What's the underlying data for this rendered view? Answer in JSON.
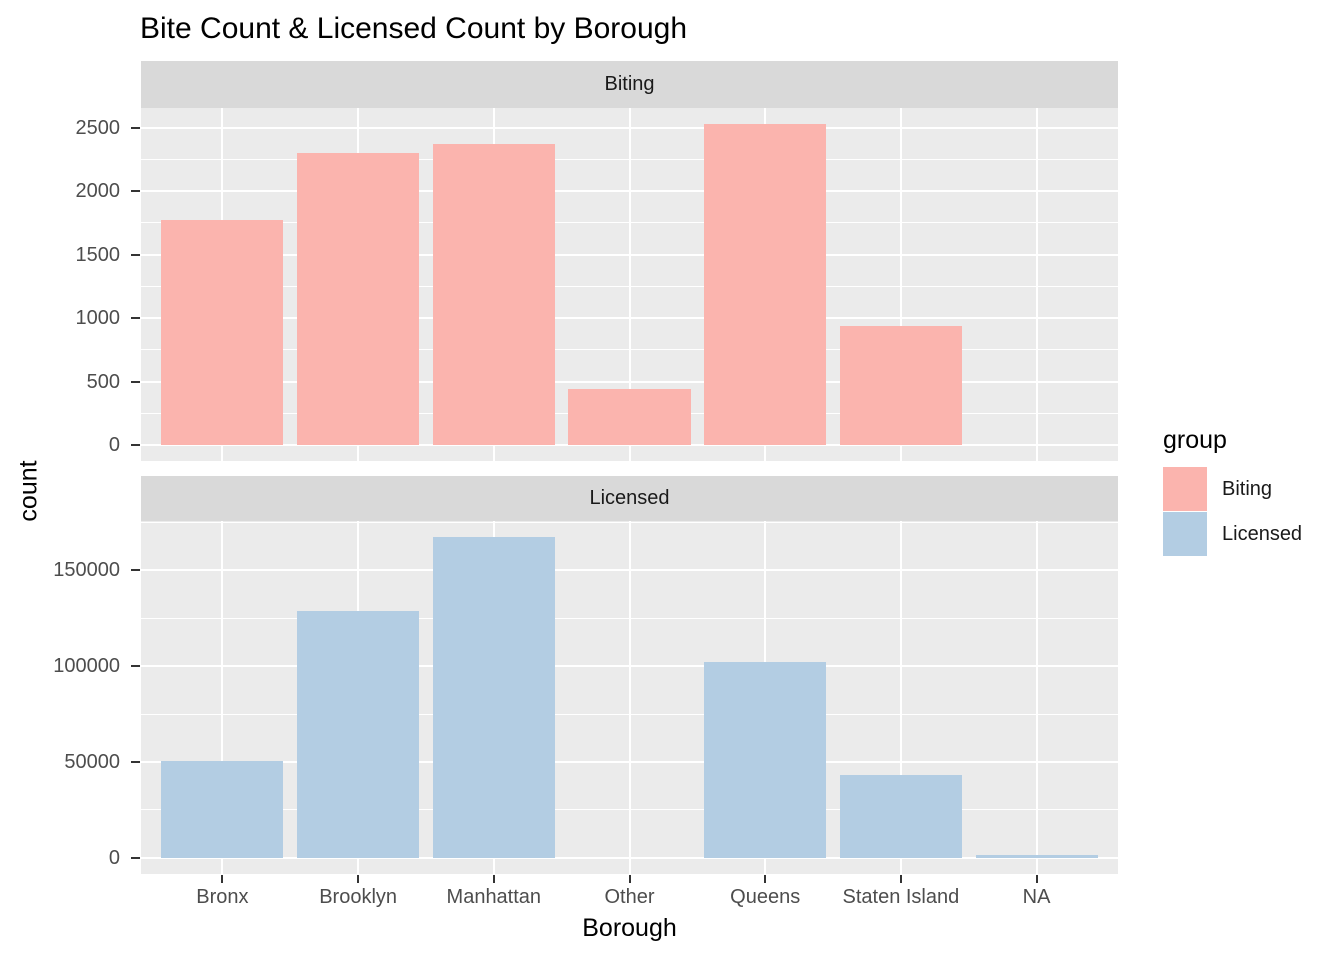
{
  "chart_data": {
    "type": "bar",
    "title": "Bite Count & Licensed Count by Borough",
    "xlabel": "Borough",
    "ylabel": "count",
    "categories": [
      "Bronx",
      "Brooklyn",
      "Manhattan",
      "Other",
      "Queens",
      "Staten Island",
      "NA"
    ],
    "facets": [
      {
        "label": "Biting",
        "color": "#FBB4AE",
        "values": [
          1770,
          2300,
          2370,
          440,
          2530,
          935,
          null
        ],
        "y_ticks": [
          0,
          500,
          1000,
          1500,
          2000,
          2500
        ],
        "y_tick_labels": [
          "0",
          "500",
          "1000",
          "1500",
          "2000",
          "2500"
        ],
        "y_minor_ticks": [
          250,
          750,
          1250,
          1750,
          2250
        ],
        "y_data_max": 2530
      },
      {
        "label": "Licensed",
        "color": "#B3CDE3",
        "values": [
          50700,
          128500,
          167200,
          null,
          102000,
          43400,
          1500
        ],
        "y_ticks": [
          0,
          50000,
          100000,
          150000
        ],
        "y_tick_labels": [
          "0",
          "50000",
          "100000",
          "150000"
        ],
        "y_minor_ticks": [
          25000,
          75000,
          125000,
          175000
        ],
        "y_data_max": 167200
      }
    ],
    "legend": {
      "title": "group",
      "position": "right",
      "entries": [
        {
          "label": "Biting",
          "color": "#FBB4AE"
        },
        {
          "label": "Licensed",
          "color": "#B3CDE3"
        }
      ]
    },
    "grid": true,
    "panel_bg": "#EBEBEB",
    "strip_bg": "#D9D9D9",
    "gridline_color": "#FFFFFF",
    "axis_text_color": "#4D4D4D",
    "tick_color": "#333333"
  }
}
